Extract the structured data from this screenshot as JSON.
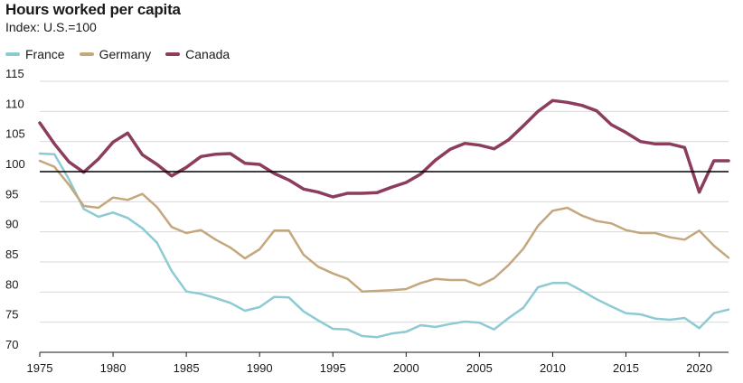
{
  "chart_data": {
    "type": "line",
    "title": "Hours worked per capita",
    "subtitle": "Index: U.S.=100",
    "xlabel": "",
    "ylabel": "",
    "ylim": [
      70,
      115
    ],
    "xlim": [
      1975,
      2022
    ],
    "yticks": [
      70,
      75,
      80,
      85,
      90,
      95,
      100,
      105,
      110,
      115
    ],
    "xticks": [
      1975,
      1980,
      1985,
      1990,
      1995,
      2000,
      2005,
      2010,
      2015,
      2020
    ],
    "reference_line": 100,
    "legend_position": "top-left",
    "x": [
      1975,
      1976,
      1977,
      1978,
      1979,
      1980,
      1981,
      1982,
      1983,
      1984,
      1985,
      1986,
      1987,
      1988,
      1989,
      1990,
      1991,
      1992,
      1993,
      1994,
      1995,
      1996,
      1997,
      1998,
      1999,
      2000,
      2001,
      2002,
      2003,
      2004,
      2005,
      2006,
      2007,
      2008,
      2009,
      2010,
      2011,
      2012,
      2013,
      2014,
      2015,
      2016,
      2017,
      2018,
      2019,
      2020,
      2021,
      2022
    ],
    "series": [
      {
        "name": "France",
        "color": "#8ecad3",
        "values": [
          103,
          102.9,
          98.7,
          93.8,
          92.5,
          93.2,
          92.3,
          90.6,
          88.2,
          83.5,
          80.1,
          79.7,
          79.0,
          78.2,
          76.9,
          77.5,
          79.2,
          79.1,
          76.8,
          75.3,
          73.9,
          73.8,
          72.7,
          72.5,
          73.1,
          73.4,
          74.5,
          74.2,
          74.7,
          75.1,
          74.9,
          73.8,
          75.7,
          77.4,
          80.8,
          81.5,
          81.5,
          80.2,
          78.8,
          77.6,
          76.5,
          76.3,
          75.6,
          75.4,
          75.7,
          74.0,
          76.5,
          77.1
        ]
      },
      {
        "name": "Germany",
        "color": "#c4a77d",
        "values": [
          101.8,
          100.8,
          97.8,
          94.3,
          94.0,
          95.7,
          95.3,
          96.3,
          94.1,
          90.8,
          89.8,
          90.3,
          88.7,
          87.4,
          85.6,
          87.1,
          90.2,
          90.2,
          86.2,
          84.2,
          83.1,
          82.2,
          80.1,
          80.2,
          80.3,
          80.5,
          81.5,
          82.2,
          82.0,
          82.0,
          81.1,
          82.3,
          84.5,
          87.2,
          91.0,
          93.5,
          94.0,
          92.7,
          91.8,
          91.4,
          90.3,
          89.8,
          89.8,
          89.1,
          88.7,
          90.2,
          87.7,
          85.7
        ]
      },
      {
        "name": "Canada",
        "color": "#8c3d5e",
        "values": [
          108.1,
          104.6,
          101.6,
          99.9,
          102.1,
          104.9,
          106.4,
          102.8,
          101.2,
          99.3,
          100.7,
          102.5,
          102.9,
          103.0,
          101.4,
          101.2,
          99.7,
          98.6,
          97.1,
          96.6,
          95.8,
          96.4,
          96.4,
          96.5,
          97.4,
          98.2,
          99.6,
          101.9,
          103.7,
          104.7,
          104.4,
          103.8,
          105.3,
          107.6,
          110.0,
          111.8,
          111.5,
          111.0,
          110.1,
          107.8,
          106.5,
          105.0,
          104.6,
          104.6,
          104.0,
          96.6,
          101.8,
          101.8
        ]
      }
    ]
  }
}
